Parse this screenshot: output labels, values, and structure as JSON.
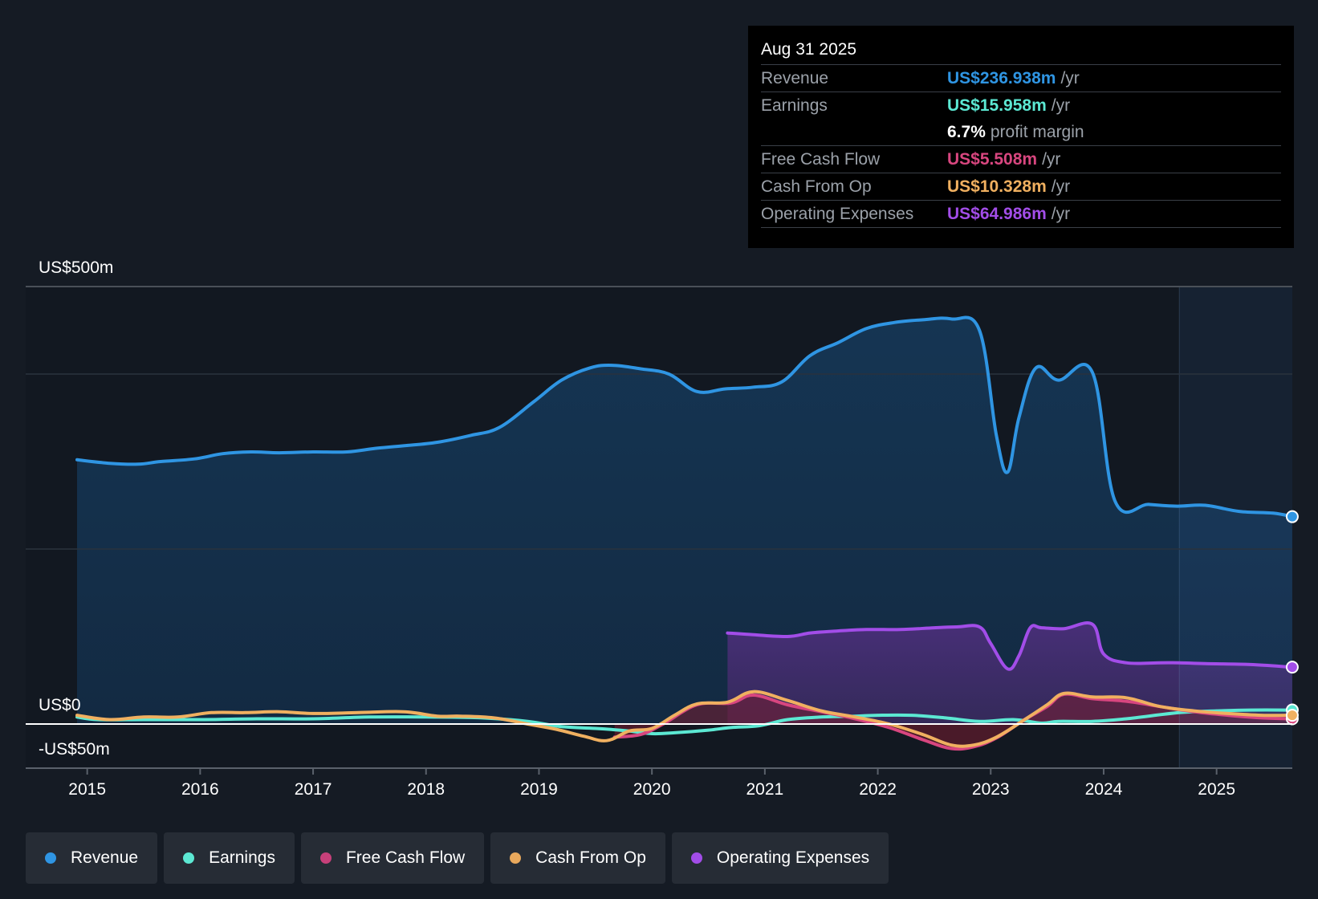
{
  "tooltip": {
    "date": "Aug 31 2025",
    "rows": [
      {
        "label": "Revenue",
        "value": "US$236.938m",
        "unit": "/yr",
        "color": "#2f95e3"
      },
      {
        "label": "Earnings",
        "value": "US$15.958m",
        "unit": "/yr",
        "color": "#5ce8d3"
      },
      {
        "margin_value": "6.7%",
        "margin_text": "profit margin"
      },
      {
        "label": "Free Cash Flow",
        "value": "US$5.508m",
        "unit": "/yr",
        "color": "#d8467f"
      },
      {
        "label": "Cash From Op",
        "value": "US$10.328m",
        "unit": "/yr",
        "color": "#f0b060"
      },
      {
        "label": "Operating Expenses",
        "value": "US$64.986m",
        "unit": "/yr",
        "color": "#a24de8"
      }
    ]
  },
  "legend": [
    {
      "label": "Revenue",
      "color": "#2f95e3"
    },
    {
      "label": "Earnings",
      "color": "#5ce8d3"
    },
    {
      "label": "Free Cash Flow",
      "color": "#c7407a"
    },
    {
      "label": "Cash From Op",
      "color": "#e8a85c"
    },
    {
      "label": "Operating Expenses",
      "color": "#a24de8"
    }
  ],
  "chart_data": {
    "type": "area",
    "y_labels": [
      "US$500m",
      "US$0",
      "-US$50m"
    ],
    "ylim": [
      -50,
      500
    ],
    "xlim": [
      2014.55,
      2025.75
    ],
    "grid": true,
    "forecast_shade_start": 2024.67,
    "x_ticks": [
      2015,
      2016,
      2017,
      2018,
      2019,
      2020,
      2021,
      2022,
      2023,
      2024,
      2025
    ],
    "x_tick_labels": [
      "2015",
      "2016",
      "2017",
      "2018",
      "2019",
      "2020",
      "2021",
      "2022",
      "2023",
      "2024",
      "2025"
    ],
    "series": [
      {
        "name": "Revenue",
        "color": "#2f95e3",
        "fill": true,
        "x": [
          2014.91,
          2015.2,
          2015.45,
          2015.65,
          2015.95,
          2016.2,
          2016.45,
          2016.7,
          2017.0,
          2017.3,
          2017.55,
          2017.8,
          2018.1,
          2018.4,
          2018.65,
          2018.95,
          2019.2,
          2019.45,
          2019.65,
          2019.9,
          2020.15,
          2020.4,
          2020.65,
          2020.9,
          2021.15,
          2021.4,
          2021.65,
          2021.9,
          2022.15,
          2022.4,
          2022.65,
          2022.9,
          2023.05,
          2023.15,
          2023.25,
          2023.4,
          2023.6,
          2023.9,
          2024.1,
          2024.4,
          2024.65,
          2024.9,
          2025.2,
          2025.5,
          2025.67
        ],
        "values": [
          302,
          298,
          297,
          300,
          303,
          309,
          311,
          310,
          311,
          311,
          315,
          318,
          322,
          330,
          339,
          368,
          393,
          407,
          410,
          406,
          400,
          380,
          383,
          385,
          391,
          421,
          436,
          452,
          459,
          462,
          463,
          450,
          330,
          288,
          350,
          407,
          393,
          402,
          255,
          251,
          249,
          250,
          243,
          241,
          237
        ]
      },
      {
        "name": "Operating Expenses",
        "color": "#a24de8",
        "fill": true,
        "x": [
          2020.67,
          2020.9,
          2021.2,
          2021.4,
          2021.6,
          2021.9,
          2022.2,
          2022.5,
          2022.7,
          2022.9,
          2023.0,
          2023.15,
          2023.25,
          2023.35,
          2023.45,
          2023.65,
          2023.9,
          2024.0,
          2024.2,
          2024.5,
          2024.67,
          2024.9,
          2025.3,
          2025.67
        ],
        "values": [
          104,
          102,
          100,
          104,
          106,
          108,
          108,
          110,
          111,
          111,
          92,
          63,
          78,
          110,
          110,
          109,
          114,
          80,
          70,
          70,
          70,
          69,
          68,
          65
        ]
      },
      {
        "name": "Earnings",
        "color": "#5ce8d3",
        "fill": false,
        "x": [
          2014.91,
          2015.1,
          2015.5,
          2016.0,
          2016.5,
          2017.0,
          2017.5,
          2018.0,
          2018.5,
          2018.9,
          2019.2,
          2019.5,
          2019.8,
          2020.0,
          2020.2,
          2020.5,
          2020.7,
          2020.95,
          2021.2,
          2021.5,
          2021.8,
          2022.0,
          2022.3,
          2022.6,
          2022.9,
          2023.2,
          2023.45,
          2023.6,
          2023.9,
          2024.2,
          2024.67,
          2025.0,
          2025.3,
          2025.67
        ],
        "values": [
          8,
          5,
          5,
          5,
          6,
          6,
          8,
          8,
          7,
          3,
          -3,
          -5,
          -8,
          -11,
          -10,
          -7,
          -4,
          -2,
          5,
          8,
          9,
          10,
          10,
          7,
          3,
          5,
          1,
          3,
          3,
          6,
          13,
          15,
          16,
          16
        ]
      },
      {
        "name": "Free Cash Flow",
        "color": "#d8467f",
        "fill": true,
        "x": [
          2019.67,
          2019.9,
          2020.1,
          2020.4,
          2020.7,
          2020.9,
          2021.2,
          2021.5,
          2021.8,
          2022.1,
          2022.4,
          2022.65,
          2022.85,
          2023.05,
          2023.3,
          2023.5,
          2023.65,
          2023.9,
          2024.2,
          2024.5,
          2024.8,
          2025.1,
          2025.4,
          2025.67
        ],
        "values": [
          -15,
          -12,
          0,
          22,
          24,
          33,
          22,
          14,
          6,
          -4,
          -18,
          -28,
          -26,
          -16,
          5,
          20,
          34,
          29,
          26,
          20,
          14,
          10,
          7,
          6
        ]
      },
      {
        "name": "Cash From Op",
        "color": "#f0b060",
        "fill": false,
        "x": [
          2014.91,
          2015.2,
          2015.5,
          2015.8,
          2016.1,
          2016.4,
          2016.7,
          2017.0,
          2017.4,
          2017.8,
          2018.1,
          2018.3,
          2018.6,
          2018.9,
          2019.15,
          2019.4,
          2019.6,
          2019.8,
          2020.0,
          2020.2,
          2020.4,
          2020.67,
          2020.9,
          2021.2,
          2021.5,
          2021.8,
          2022.1,
          2022.4,
          2022.65,
          2022.85,
          2023.05,
          2023.3,
          2023.5,
          2023.65,
          2023.9,
          2024.2,
          2024.5,
          2024.8,
          2025.1,
          2025.4,
          2025.67
        ],
        "values": [
          10,
          5,
          8,
          8,
          13,
          13,
          14,
          12,
          13,
          14,
          9,
          9,
          7,
          0,
          -6,
          -14,
          -19,
          -8,
          -5,
          10,
          23,
          25,
          37,
          27,
          15,
          8,
          0,
          -12,
          -24,
          -24,
          -15,
          5,
          22,
          35,
          31,
          30,
          20,
          15,
          12,
          10,
          10
        ]
      }
    ]
  }
}
